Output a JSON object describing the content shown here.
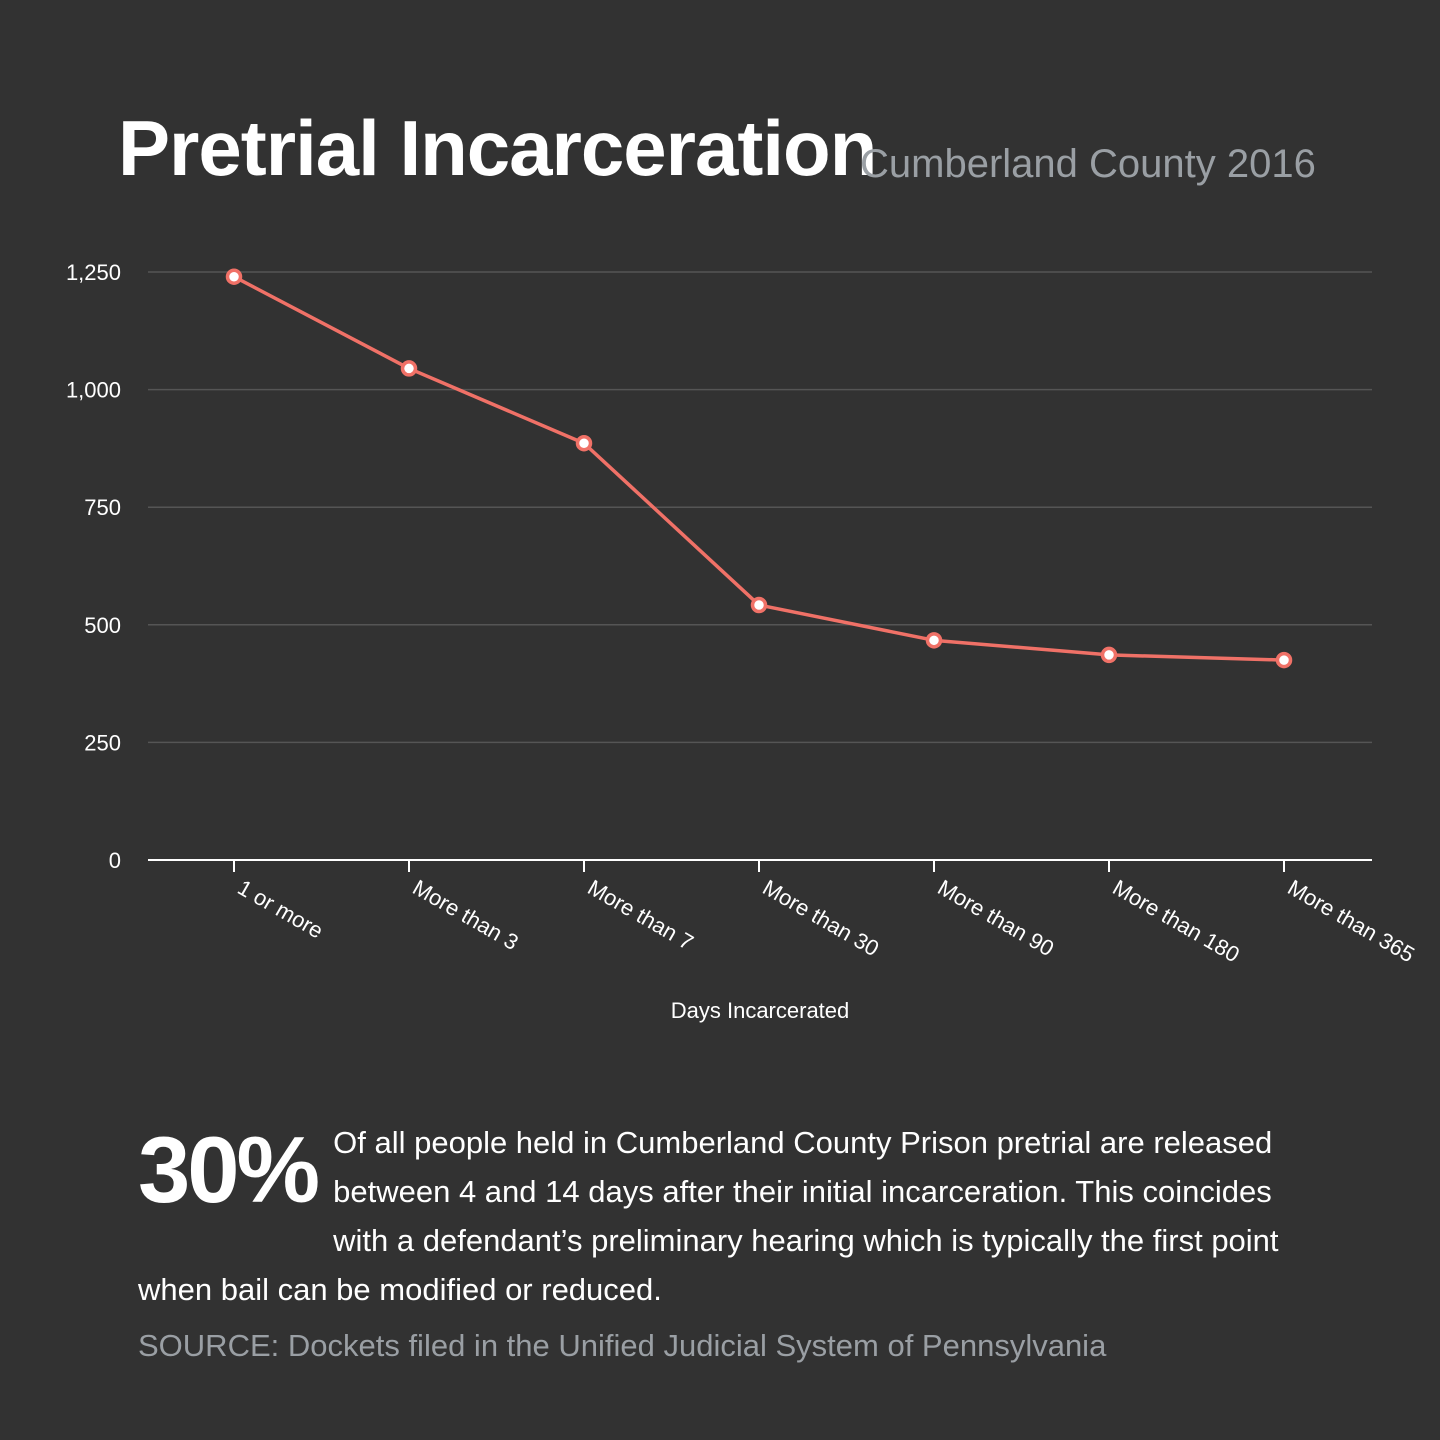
{
  "header": {
    "title": "Pretrial Incarceration",
    "subtitle": "Cumberland County 2016"
  },
  "chart_data": {
    "type": "line",
    "categories": [
      "1 or more",
      "More than 3",
      "More than 7",
      "More than 30",
      "More than 90",
      "More than 180",
      "More than 365"
    ],
    "values": [
      1240,
      1045,
      886,
      542,
      467,
      436,
      425
    ],
    "xlabel": "Days Incarcerated",
    "ylabel": "",
    "ylim": [
      0,
      1250
    ],
    "yticks": [
      0,
      250,
      500,
      750,
      1000,
      1250
    ],
    "ytick_labels": [
      "0",
      "250",
      "500",
      "750",
      "1,000",
      "1,250"
    ],
    "grid": true,
    "legend": "none",
    "line_color": "#f07167",
    "marker_fill": "#ffffff"
  },
  "callout": {
    "stat": "30%",
    "text": "Of all people held in Cumberland County Prison pretrial are released between 4 and 14 days after their initial incarceration. This coincides with a defendant’s preliminary hearing which is typically the first point when bail can be modified or reduced."
  },
  "source": "SOURCE: Dockets filed in the Unified Judicial System of Pennsylvania"
}
